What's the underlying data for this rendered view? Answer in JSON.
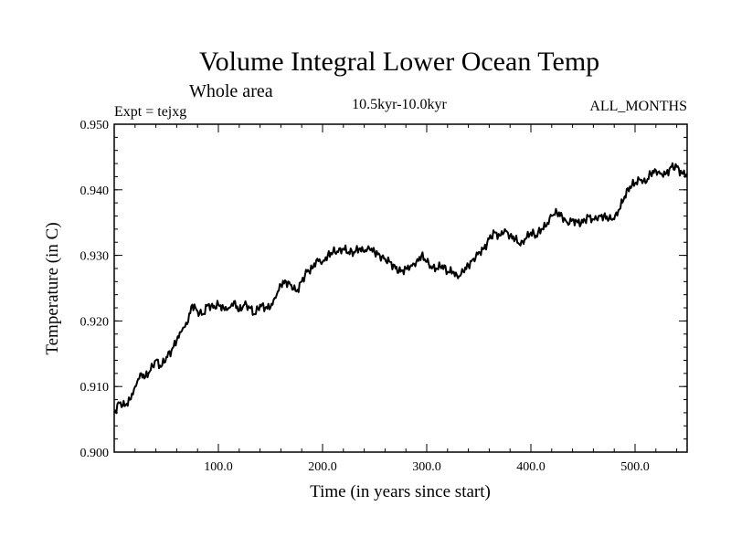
{
  "chart_data": {
    "type": "line",
    "title": "Volume Integral Lower Ocean Temp",
    "subtitle": "Whole area",
    "left_label": "Expt = tejxg",
    "center_label": "10.5kyr-10.0kyr",
    "right_label": "ALL_MONTHS",
    "xlabel": "Time (in years since start)",
    "ylabel": "Temperature (in C)",
    "xlim": [
      0,
      550
    ],
    "ylim": [
      0.9,
      0.95
    ],
    "x_ticks": [
      100,
      200,
      300,
      400,
      500
    ],
    "x_tick_labels": [
      "100.0",
      "200.0",
      "300.0",
      "400.0",
      "500.0"
    ],
    "y_ticks": [
      0.9,
      0.91,
      0.92,
      0.93,
      0.94,
      0.95
    ],
    "y_tick_labels": [
      "0.900",
      "0.910",
      "0.920",
      "0.930",
      "0.940",
      "0.950"
    ],
    "series": [
      {
        "name": "tejxg",
        "x": [
          0,
          5,
          10,
          15,
          20,
          25,
          30,
          35,
          40,
          45,
          50,
          55,
          60,
          65,
          70,
          75,
          80,
          85,
          90,
          95,
          100,
          105,
          110,
          115,
          120,
          125,
          130,
          135,
          140,
          145,
          150,
          155,
          160,
          165,
          170,
          175,
          180,
          185,
          190,
          195,
          200,
          205,
          210,
          215,
          220,
          225,
          230,
          235,
          240,
          245,
          250,
          255,
          260,
          265,
          270,
          275,
          280,
          285,
          290,
          295,
          300,
          305,
          310,
          315,
          320,
          325,
          330,
          335,
          340,
          345,
          350,
          355,
          360,
          365,
          370,
          375,
          380,
          385,
          390,
          395,
          400,
          405,
          410,
          415,
          420,
          425,
          430,
          435,
          440,
          445,
          450,
          455,
          460,
          465,
          470,
          475,
          480,
          485,
          490,
          495,
          500,
          505,
          510,
          515,
          520,
          525,
          530,
          535,
          540,
          545,
          550
        ],
        "values": [
          0.906,
          0.9075,
          0.907,
          0.908,
          0.91,
          0.912,
          0.9115,
          0.9125,
          0.914,
          0.913,
          0.9145,
          0.9155,
          0.917,
          0.9185,
          0.9195,
          0.9225,
          0.9215,
          0.921,
          0.9225,
          0.922,
          0.9225,
          0.922,
          0.922,
          0.923,
          0.9215,
          0.9225,
          0.922,
          0.921,
          0.9225,
          0.922,
          0.922,
          0.9235,
          0.9255,
          0.926,
          0.9255,
          0.9245,
          0.926,
          0.9275,
          0.928,
          0.9295,
          0.929,
          0.93,
          0.9305,
          0.9305,
          0.931,
          0.9305,
          0.9305,
          0.931,
          0.9305,
          0.931,
          0.9305,
          0.93,
          0.9295,
          0.929,
          0.928,
          0.9275,
          0.928,
          0.9285,
          0.929,
          0.93,
          0.929,
          0.928,
          0.928,
          0.9285,
          0.9275,
          0.9275,
          0.9265,
          0.9275,
          0.9285,
          0.9295,
          0.9305,
          0.931,
          0.9325,
          0.9335,
          0.933,
          0.934,
          0.933,
          0.9325,
          0.9315,
          0.9325,
          0.9335,
          0.933,
          0.934,
          0.9345,
          0.936,
          0.9365,
          0.936,
          0.935,
          0.9355,
          0.935,
          0.935,
          0.936,
          0.9355,
          0.936,
          0.936,
          0.9355,
          0.9355,
          0.937,
          0.939,
          0.9405,
          0.941,
          0.9415,
          0.941,
          0.9425,
          0.943,
          0.9425,
          0.9425,
          0.9435,
          0.9435,
          0.9425,
          0.9425
        ]
      }
    ]
  }
}
